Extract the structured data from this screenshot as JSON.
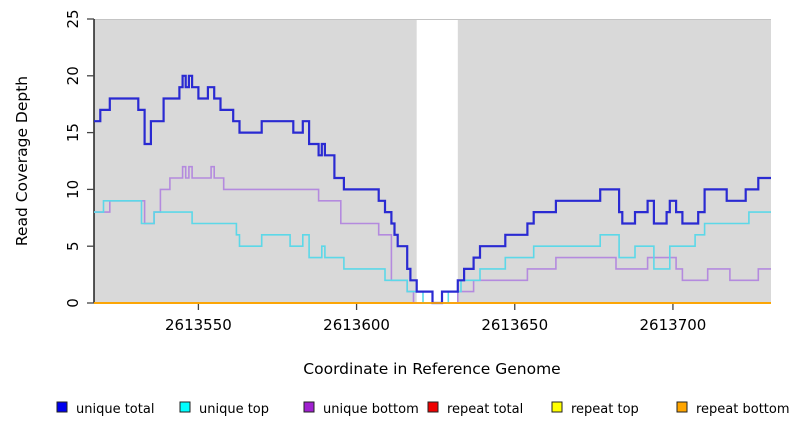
{
  "chart_data": {
    "type": "line",
    "subtype": "step",
    "title": "",
    "xlabel": "Coordinate in Reference Genome",
    "ylabel": "Read Coverage Depth",
    "xlim": [
      2613517,
      2613731
    ],
    "ylim": [
      0,
      25
    ],
    "x_ticks": [
      "2613550",
      "2613600",
      "2613650",
      "2613700"
    ],
    "x_tick_values": [
      2613550,
      2613600,
      2613650,
      2613700
    ],
    "y_ticks": [
      "0",
      "5",
      "10",
      "15",
      "20",
      "25"
    ],
    "y_tick_values": [
      0,
      5,
      10,
      15,
      20,
      25
    ],
    "grid": false,
    "plot_background": "#d9d9d9",
    "plot_border_top": "#c4c4c4",
    "masked_region": {
      "start": 2613619,
      "end": 2613632,
      "color": "#ffffff"
    },
    "legend_position": "bottom",
    "series": [
      {
        "name": "unique total",
        "color": "#2a2ad2",
        "legend_color": "#0000ee",
        "width": 2.2,
        "points": [
          [
            2613517,
            16
          ],
          [
            2613519,
            17
          ],
          [
            2613522,
            18
          ],
          [
            2613531,
            17
          ],
          [
            2613533,
            14
          ],
          [
            2613535,
            16
          ],
          [
            2613539,
            18
          ],
          [
            2613544,
            19
          ],
          [
            2613545,
            20
          ],
          [
            2613546,
            19
          ],
          [
            2613547,
            20
          ],
          [
            2613548,
            19
          ],
          [
            2613550,
            18
          ],
          [
            2613553,
            19
          ],
          [
            2613555,
            18
          ],
          [
            2613557,
            17
          ],
          [
            2613561,
            16
          ],
          [
            2613563,
            15
          ],
          [
            2613570,
            16
          ],
          [
            2613580,
            15
          ],
          [
            2613583,
            16
          ],
          [
            2613585,
            14
          ],
          [
            2613588,
            13
          ],
          [
            2613589,
            14
          ],
          [
            2613590,
            13
          ],
          [
            2613593,
            11
          ],
          [
            2613596,
            10
          ],
          [
            2613607,
            9
          ],
          [
            2613609,
            8
          ],
          [
            2613611,
            7
          ],
          [
            2613612,
            6
          ],
          [
            2613613,
            5
          ],
          [
            2613616,
            3
          ],
          [
            2613617,
            2
          ],
          [
            2613619,
            1
          ],
          [
            2613624,
            0
          ],
          [
            2613627,
            1
          ],
          [
            2613632,
            2
          ],
          [
            2613634,
            3
          ],
          [
            2613637,
            4
          ],
          [
            2613639,
            5
          ],
          [
            2613647,
            6
          ],
          [
            2613654,
            7
          ],
          [
            2613656,
            8
          ],
          [
            2613663,
            9
          ],
          [
            2613677,
            10
          ],
          [
            2613683,
            8
          ],
          [
            2613684,
            7
          ],
          [
            2613688,
            8
          ],
          [
            2613692,
            9
          ],
          [
            2613694,
            7
          ],
          [
            2613698,
            8
          ],
          [
            2613699,
            9
          ],
          [
            2613701,
            8
          ],
          [
            2613703,
            7
          ],
          [
            2613708,
            8
          ],
          [
            2613710,
            10
          ],
          [
            2613717,
            9
          ],
          [
            2613723,
            10
          ],
          [
            2613727,
            11
          ]
        ]
      },
      {
        "name": "unique top",
        "color": "#5cd8e8",
        "legend_color": "#00ffff",
        "width": 1.6,
        "points": [
          [
            2613517,
            8
          ],
          [
            2613520,
            9
          ],
          [
            2613532,
            7
          ],
          [
            2613536,
            8
          ],
          [
            2613548,
            7
          ],
          [
            2613562,
            6
          ],
          [
            2613563,
            5
          ],
          [
            2613570,
            6
          ],
          [
            2613579,
            5
          ],
          [
            2613583,
            6
          ],
          [
            2613585,
            4
          ],
          [
            2613589,
            5
          ],
          [
            2613590,
            4
          ],
          [
            2613596,
            3
          ],
          [
            2613609,
            2
          ],
          [
            2613616,
            1
          ],
          [
            2613621,
            0
          ],
          [
            2613629,
            1
          ],
          [
            2613633,
            2
          ],
          [
            2613639,
            3
          ],
          [
            2613647,
            4
          ],
          [
            2613656,
            5
          ],
          [
            2613677,
            6
          ],
          [
            2613683,
            4
          ],
          [
            2613688,
            5
          ],
          [
            2613694,
            3
          ],
          [
            2613699,
            5
          ],
          [
            2613707,
            6
          ],
          [
            2613710,
            7
          ],
          [
            2613724,
            8
          ]
        ]
      },
      {
        "name": "unique bottom",
        "color": "#b48ade",
        "legend_color": "#a020d0",
        "width": 1.6,
        "points": [
          [
            2613517,
            8
          ],
          [
            2613522,
            9
          ],
          [
            2613533,
            7
          ],
          [
            2613536,
            8
          ],
          [
            2613538,
            10
          ],
          [
            2613541,
            11
          ],
          [
            2613545,
            12
          ],
          [
            2613546,
            11
          ],
          [
            2613547,
            12
          ],
          [
            2613548,
            11
          ],
          [
            2613554,
            12
          ],
          [
            2613555,
            11
          ],
          [
            2613558,
            10
          ],
          [
            2613588,
            9
          ],
          [
            2613595,
            7
          ],
          [
            2613607,
            6
          ],
          [
            2613611,
            2
          ],
          [
            2613616,
            1
          ],
          [
            2613618,
            0
          ],
          [
            2613632,
            1
          ],
          [
            2613637,
            2
          ],
          [
            2613654,
            3
          ],
          [
            2613663,
            4
          ],
          [
            2613682,
            3
          ],
          [
            2613692,
            4
          ],
          [
            2613701,
            3
          ],
          [
            2613703,
            2
          ],
          [
            2613711,
            3
          ],
          [
            2613718,
            2
          ],
          [
            2613727,
            3
          ]
        ]
      },
      {
        "name": "repeat total",
        "color": "#dd0000",
        "legend_color": "#ee0000",
        "width": 1.5,
        "points": [
          [
            2613517,
            0
          ]
        ]
      },
      {
        "name": "repeat top",
        "color": "#ffff00",
        "legend_color": "#ffff00",
        "width": 1.5,
        "points": [
          [
            2613517,
            0
          ]
        ]
      },
      {
        "name": "repeat bottom",
        "color": "#ffa500",
        "legend_color": "#ffa500",
        "width": 1.8,
        "points": [
          [
            2613517,
            0
          ]
        ]
      }
    ]
  }
}
